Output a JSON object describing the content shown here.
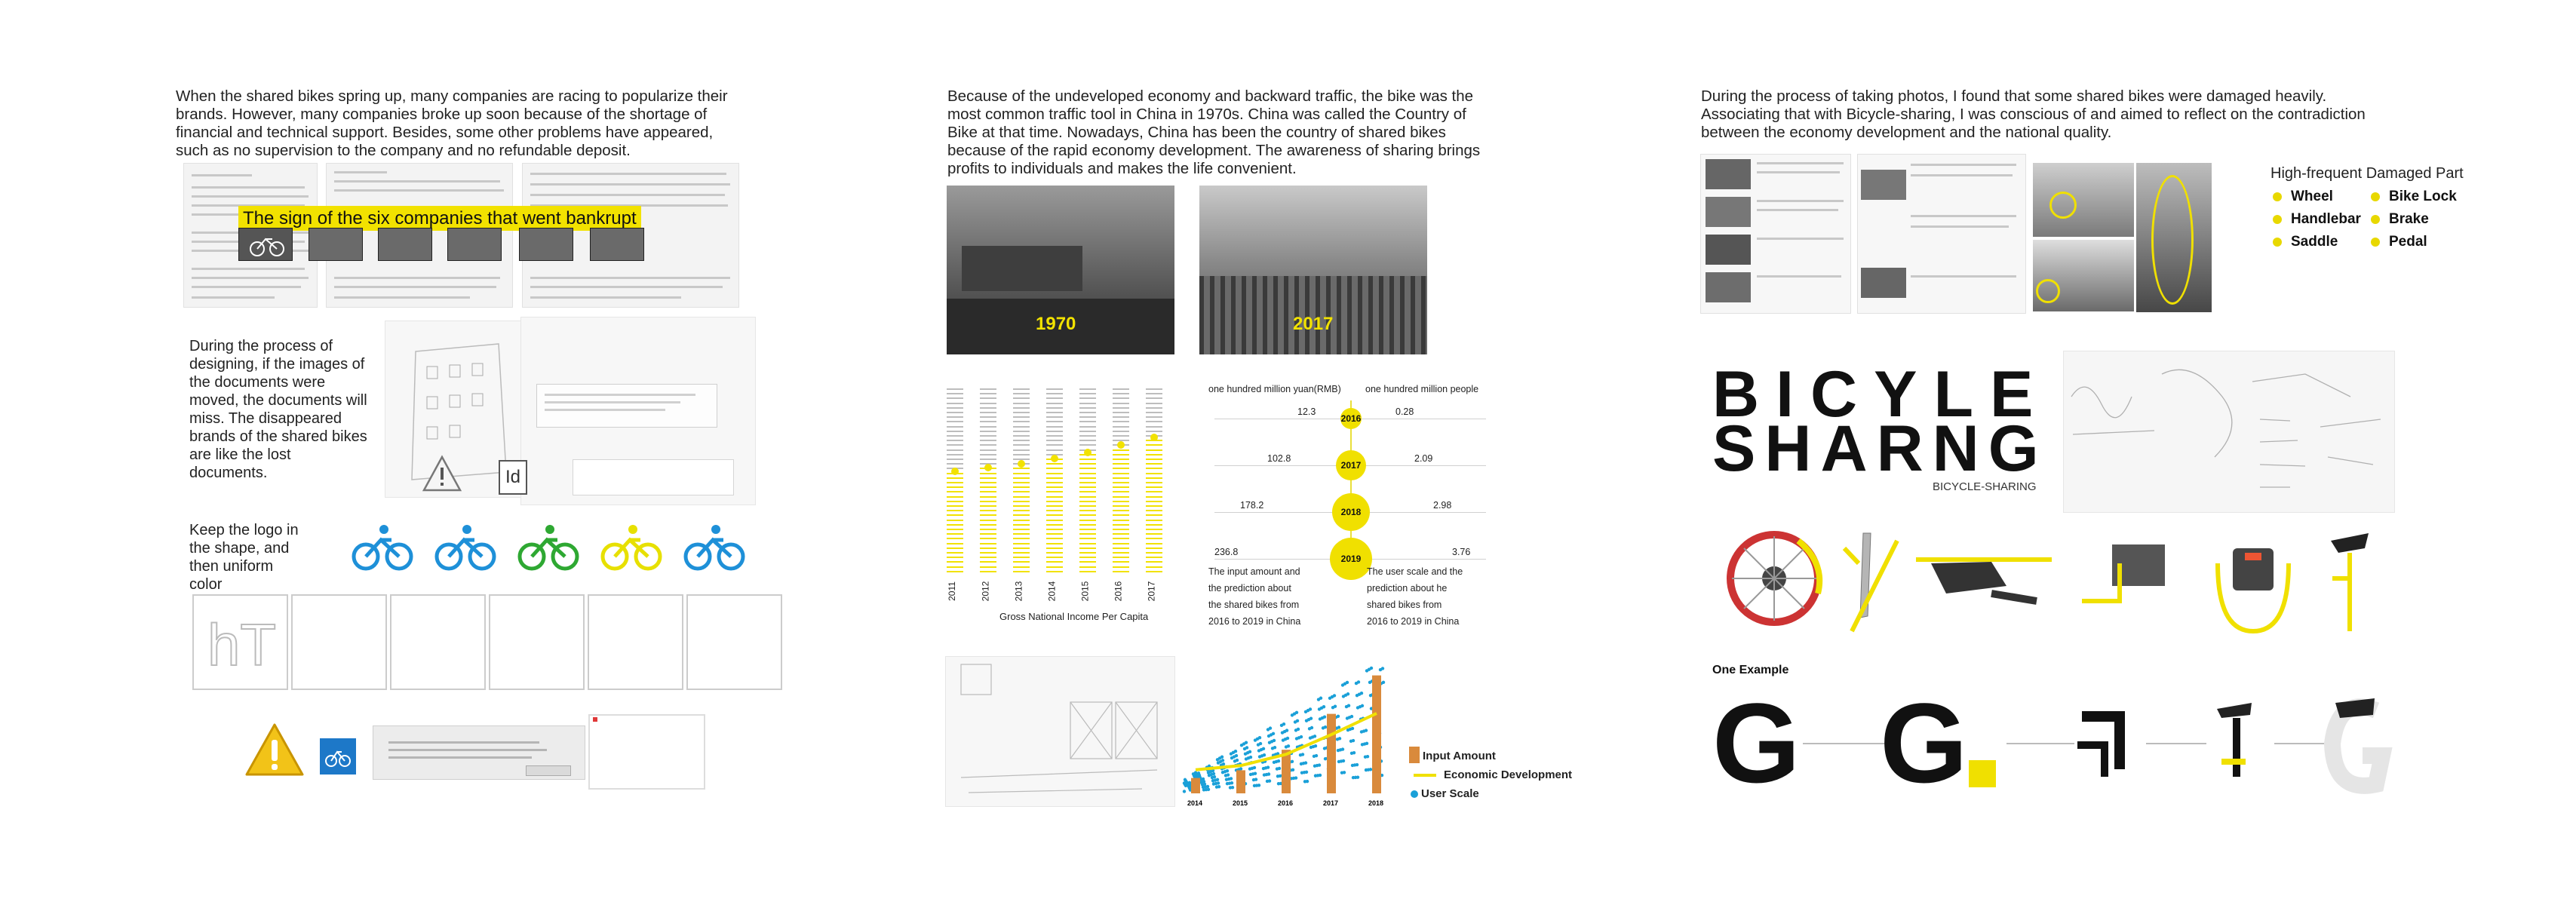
{
  "panel1": {
    "intro": "When the shared bikes spring up, many companies are racing to popularize their brands. However, many companies broke up soon because of the shortage of financial and technical support. Besides, some other problems have appeared, such as no supervision to the company and no refundable deposit.",
    "highlight": "The sign of the six companies that went bankrupt",
    "design_note": "During the process of designing, if the images of the documents were moved, the documents will miss. The disappeared brands of the shared bikes are like the lost documents.",
    "logo_note": "Keep the logo in the shape, and then uniform color",
    "indesign_glyph": "Id",
    "logo_colors": [
      "#1e90d8",
      "#1e90d8",
      "#2ea832",
      "#e7e000",
      "#1e90d8"
    ]
  },
  "panel2": {
    "intro": "Because of the undeveloped economy and backward traffic, the bike was the most common traffic tool in China in 1970s. China was called the Country of Bike at that time. Nowadays, China has been the country of shared bikes because of the rapid economy development. The awareness of sharing brings profits to individuals and makes the life convenient.",
    "photo_labels": [
      "1970",
      "2017"
    ],
    "gni_chart": {
      "years": [
        "2011",
        "2012",
        "2013",
        "2014",
        "2015",
        "2016",
        "2017"
      ],
      "levels": [
        0.56,
        0.58,
        0.6,
        0.63,
        0.66,
        0.7,
        0.74
      ],
      "caption": "Gross National Income Per Capita"
    },
    "comparison": {
      "left_header": "one hundred million yuan(RMB)",
      "right_header": "one hundred million people",
      "rows": [
        {
          "year": "2016",
          "left": "12.3",
          "right": "0.28"
        },
        {
          "year": "2017",
          "left": "102.8",
          "right": "2.09"
        },
        {
          "year": "2018",
          "left": "178.2",
          "right": "2.98"
        },
        {
          "year": "2019",
          "left": "236.8",
          "right": "3.76"
        }
      ],
      "left_note": "The input amount and the prediction about the shared bikes from 2016 to 2019 in China",
      "right_note": "The user scale and the prediction about he shared bikes from 2016 to 2019 in China"
    },
    "combo_chart": {
      "years": [
        "2014",
        "2015",
        "2016",
        "2017",
        "2018"
      ],
      "legend": [
        "Input Amount",
        "Economic Development",
        "User Scale"
      ],
      "colors": {
        "input": "#d98a3c",
        "economy": "#f0e000",
        "users": "#1aa0d8"
      }
    }
  },
  "panel3": {
    "intro": "During the process of taking photos, I found that some shared bikes were damaged heavily. Associating that with Bicycle-sharing, I was conscious of and aimed to reflect on the contradiction between the economy development and the national quality.",
    "damaged_title": "High-frequent Damaged Part",
    "damaged_parts": [
      "Wheel",
      "Handlebar",
      "Saddle",
      "Bike Lock",
      "Brake",
      "Pedal"
    ],
    "title_line1": "BICYLE",
    "title_line2": "SHARNG",
    "subtitle": "BICYCLE-SHARING",
    "example_label": "One Example",
    "example_letter": "G"
  }
}
